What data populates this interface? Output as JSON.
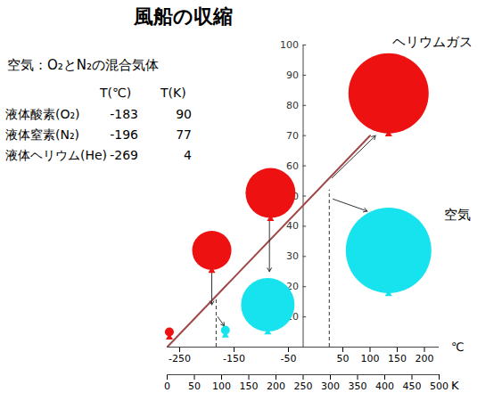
{
  "chart_data": {
    "type": "line",
    "title": "風船の収縮",
    "xlabel": "℃",
    "x2label": "K",
    "xlim": [
      -273,
      227
    ],
    "xticks": [
      -250,
      -150,
      -50,
      50,
      100,
      150,
      200
    ],
    "x2lim": [
      0,
      500
    ],
    "x2ticks": [
      0,
      50,
      100,
      150,
      200,
      250,
      300,
      350,
      400,
      450,
      500
    ],
    "ylim": [
      0,
      100
    ],
    "yticks": [
      10,
      20,
      30,
      40,
      50,
      60,
      70,
      80,
      90,
      100
    ],
    "series": [
      {
        "type": "line",
        "color": "#a04848",
        "x": [
          -273,
          100
        ],
        "values": [
          0,
          70
        ]
      },
      {
        "type": "scatter",
        "name": "ヘリウムガス",
        "color": "#ee1111",
        "marker": "circle",
        "x": [
          -269,
          -191,
          -83,
          134
        ],
        "values": [
          5,
          32,
          51,
          84
        ],
        "size": [
          5,
          22,
          28,
          45
        ]
      },
      {
        "type": "scatter",
        "name": "空気",
        "color": "#17e3ee",
        "marker": "circle",
        "x": [
          -166,
          -88,
          134
        ],
        "values": [
          5.6,
          14,
          32
        ],
        "size": [
          5,
          30,
          48
        ]
      }
    ],
    "guides": [
      {
        "x": -183,
        "y": 17
      },
      {
        "x": 25,
        "y": 52
      }
    ],
    "arrows": [
      {
        "x1": 30,
        "y1": 56,
        "x2": 110,
        "y2": 70
      },
      {
        "x1": 32,
        "y1": 49,
        "x2": 95,
        "y2": 45
      },
      {
        "x1": -85,
        "y1": 42,
        "x2": -85,
        "y2": 25
      },
      {
        "x1": -191,
        "y1": 25,
        "x2": -191,
        "y2": 14
      },
      {
        "x1": -180,
        "y1": 10,
        "x2": -168,
        "y2": 7
      }
    ],
    "annotations": {
      "note": "空気：O₂とN₂の混合気体",
      "table": {
        "header": [
          "T(℃)",
          "T(K)"
        ],
        "rows": [
          [
            "液体酸素(O₂)",
            -183,
            90
          ],
          [
            "液体窒素(N₂)",
            -196,
            77
          ],
          [
            "液体ヘリウム(He)",
            -269,
            4
          ]
        ]
      }
    }
  }
}
